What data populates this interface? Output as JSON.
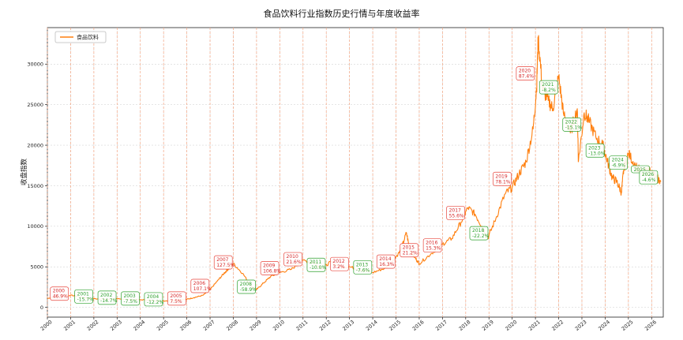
{
  "chart_data": {
    "type": "line",
    "title": "食品饮料行业指数历史行情与年度收益率",
    "ylabel": "收盘指数",
    "xlabel": "",
    "xlim": [
      2000,
      2026.5
    ],
    "ylim": [
      -1200,
      34500
    ],
    "yticks": [
      0,
      5000,
      10000,
      15000,
      20000,
      25000,
      30000
    ],
    "xticks": [
      "2000",
      "2001",
      "2002",
      "2003",
      "2004",
      "2005",
      "2006",
      "2007",
      "2008",
      "2009",
      "2010",
      "2011",
      "2012",
      "2013",
      "2014",
      "2015",
      "2016",
      "2017",
      "2018",
      "2019",
      "2020",
      "2021",
      "2022",
      "2023",
      "2024",
      "2025",
      "2026"
    ],
    "legend": {
      "position": "top-left",
      "entries": [
        "食品饮料"
      ]
    },
    "grid": true,
    "series": [
      {
        "name": "食品饮料",
        "color": "#ff7f0e",
        "x": [
          2000.0,
          2000.5,
          2001.0,
          2001.4,
          2001.8,
          2002.2,
          2002.6,
          2003.0,
          2003.5,
          2004.0,
          2004.5,
          2005.0,
          2005.5,
          2006.0,
          2006.3,
          2006.7,
          2007.0,
          2007.3,
          2007.6,
          2007.8,
          2008.0,
          2008.4,
          2008.8,
          2009.0,
          2009.3,
          2009.6,
          2010.0,
          2010.5,
          2011.0,
          2011.5,
          2011.8,
          2012.2,
          2012.6,
          2013.0,
          2013.5,
          2014.0,
          2014.5,
          2014.8,
          2015.2,
          2015.45,
          2015.6,
          2015.8,
          2016.0,
          2016.5,
          2017.0,
          2017.4,
          2017.8,
          2018.1,
          2018.4,
          2018.7,
          2018.95,
          2019.3,
          2019.7,
          2020.0,
          2020.3,
          2020.6,
          2020.9,
          2021.05,
          2021.12,
          2021.3,
          2021.55,
          2021.75,
          2022.0,
          2022.2,
          2022.5,
          2022.8,
          2022.85,
          2023.1,
          2023.3,
          2023.6,
          2023.9,
          2024.1,
          2024.3,
          2024.5,
          2024.7,
          2024.8,
          2025.0,
          2025.3,
          2025.6,
          2025.9,
          2026.2,
          2026.4
        ],
        "values": [
          1100,
          1350,
          1500,
          1300,
          1100,
          1050,
          1000,
          1050,
          950,
          950,
          850,
          800,
          850,
          1000,
          1200,
          1500,
          2200,
          3200,
          4200,
          4800,
          5400,
          4200,
          2500,
          2200,
          3000,
          3800,
          4300,
          4700,
          5800,
          5500,
          4800,
          5600,
          5000,
          5000,
          4600,
          4300,
          4800,
          5500,
          7000,
          9200,
          7000,
          6200,
          5400,
          6600,
          7800,
          8500,
          10500,
          12300,
          11500,
          10000,
          8500,
          11000,
          14000,
          14800,
          16500,
          18000,
          22000,
          27000,
          33300,
          27000,
          25500,
          24500,
          28500,
          24000,
          21500,
          24500,
          18000,
          24000,
          23000,
          21000,
          20000,
          18000,
          16000,
          15500,
          14200,
          17000,
          19000,
          17500,
          16500,
          17000,
          16000,
          15500
        ]
      }
    ],
    "annotations": [
      {
        "year": "2000",
        "pct": "46.9%",
        "x": 2000.5,
        "y": 1550,
        "color": "red"
      },
      {
        "year": "2001",
        "pct": "-15.7%",
        "x": 2001.55,
        "y": 1200,
        "color": "green"
      },
      {
        "year": "2002",
        "pct": "-14.7%",
        "x": 2002.55,
        "y": 1050,
        "color": "green"
      },
      {
        "year": "2003",
        "pct": "-7.5%",
        "x": 2003.55,
        "y": 950,
        "color": "green"
      },
      {
        "year": "2004",
        "pct": "-12.2%",
        "x": 2004.55,
        "y": 850,
        "color": "green"
      },
      {
        "year": "2005",
        "pct": "7.5%",
        "x": 2005.55,
        "y": 950,
        "color": "red"
      },
      {
        "year": "2006",
        "pct": "107.1%",
        "x": 2006.55,
        "y": 2500,
        "color": "red"
      },
      {
        "year": "2007",
        "pct": "127.5%",
        "x": 2007.55,
        "y": 5400,
        "color": "red"
      },
      {
        "year": "2008",
        "pct": "-58.9%",
        "x": 2008.55,
        "y": 2400,
        "color": "green"
      },
      {
        "year": "2009",
        "pct": "106.8%",
        "x": 2009.55,
        "y": 4700,
        "color": "red"
      },
      {
        "year": "2010",
        "pct": "21.6%",
        "x": 2010.55,
        "y": 5800,
        "color": "red"
      },
      {
        "year": "2011",
        "pct": "-10.0%",
        "x": 2011.55,
        "y": 5100,
        "color": "green"
      },
      {
        "year": "2012",
        "pct": "3.2%",
        "x": 2012.55,
        "y": 5200,
        "color": "red"
      },
      {
        "year": "2013",
        "pct": "-7.6%",
        "x": 2013.55,
        "y": 4800,
        "color": "green"
      },
      {
        "year": "2014",
        "pct": "16.3%",
        "x": 2014.55,
        "y": 5500,
        "color": "red"
      },
      {
        "year": "2015",
        "pct": "21.2%",
        "x": 2015.55,
        "y": 6900,
        "color": "red"
      },
      {
        "year": "2016",
        "pct": "15.3%",
        "x": 2016.55,
        "y": 7500,
        "color": "red"
      },
      {
        "year": "2017",
        "pct": "55.6%",
        "x": 2017.55,
        "y": 11500,
        "color": "red"
      },
      {
        "year": "2018",
        "pct": "-22.2%",
        "x": 2018.55,
        "y": 9000,
        "color": "green"
      },
      {
        "year": "2019",
        "pct": "78.1%",
        "x": 2019.55,
        "y": 15700,
        "color": "red"
      },
      {
        "year": "2020",
        "pct": "87.4%",
        "x": 2020.55,
        "y": 28700,
        "color": "red"
      },
      {
        "year": "2021",
        "pct": "-8.2%",
        "x": 2021.55,
        "y": 27000,
        "color": "green"
      },
      {
        "year": "2022",
        "pct": "-15.1%",
        "x": 2022.55,
        "y": 22400,
        "color": "green"
      },
      {
        "year": "2023",
        "pct": "-13.0%",
        "x": 2023.55,
        "y": 19200,
        "color": "green"
      },
      {
        "year": "2024",
        "pct": "-6.9%",
        "x": 2024.55,
        "y": 17700,
        "color": "green"
      },
      {
        "year": "2025",
        "pct": "",
        "x": 2025.5,
        "y": 16500,
        "color": "green"
      },
      {
        "year": "2026",
        "pct": "-4.6%",
        "x": 2025.85,
        "y": 15900,
        "color": "green"
      }
    ]
  }
}
